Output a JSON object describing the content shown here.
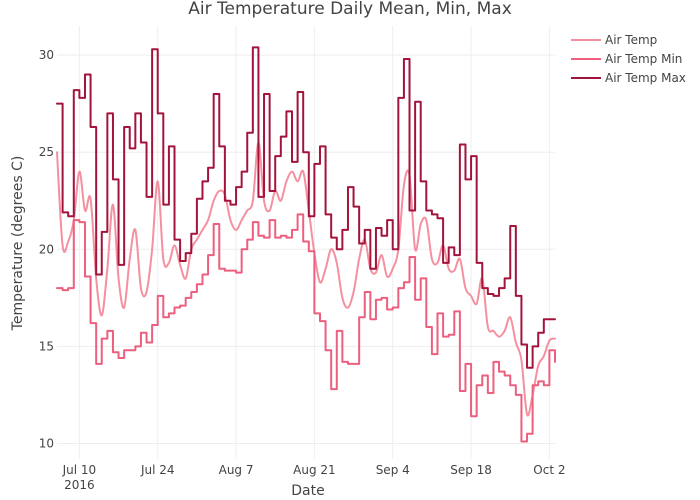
{
  "chart_data": {
    "type": "line",
    "title": "Air Temperature Daily Mean, Min, Max",
    "xlabel": "Date",
    "ylabel": "Temperature (degrees C)",
    "x_range": [
      "2016-07-06",
      "2016-10-03"
    ],
    "ylim": [
      9.2,
      31.5
    ],
    "x_ticks": [
      {
        "date": "2016-07-10",
        "label": "Jul 10",
        "sublabel": "2016"
      },
      {
        "date": "2016-07-24",
        "label": "Jul 24",
        "sublabel": ""
      },
      {
        "date": "2016-08-07",
        "label": "Aug 7",
        "sublabel": ""
      },
      {
        "date": "2016-08-21",
        "label": "Aug 21",
        "sublabel": ""
      },
      {
        "date": "2016-09-04",
        "label": "Sep 4",
        "sublabel": ""
      },
      {
        "date": "2016-09-18",
        "label": "Sep 18",
        "sublabel": ""
      },
      {
        "date": "2016-10-02",
        "label": "Oct 2",
        "sublabel": ""
      }
    ],
    "y_ticks": [
      10,
      15,
      20,
      25,
      30
    ],
    "grid": true,
    "legend_position": "top-right",
    "series": [
      {
        "name": "Air Temp",
        "color": "#f4909f",
        "shape": "smooth",
        "points": [
          [
            "2016-07-06",
            25.0
          ],
          [
            "2016-07-07",
            20.2
          ],
          [
            "2016-07-08",
            20.4
          ],
          [
            "2016-07-09",
            21.5
          ],
          [
            "2016-07-10",
            24.0
          ],
          [
            "2016-07-11",
            22.0
          ],
          [
            "2016-07-12",
            22.6
          ],
          [
            "2016-07-13",
            18.5
          ],
          [
            "2016-07-14",
            16.6
          ],
          [
            "2016-07-15",
            19.0
          ],
          [
            "2016-07-16",
            22.3
          ],
          [
            "2016-07-17",
            18.5
          ],
          [
            "2016-07-18",
            17.0
          ],
          [
            "2016-07-19",
            19.5
          ],
          [
            "2016-07-20",
            21.0
          ],
          [
            "2016-07-21",
            18.0
          ],
          [
            "2016-07-22",
            17.8
          ],
          [
            "2016-07-23",
            20.0
          ],
          [
            "2016-07-24",
            23.5
          ],
          [
            "2016-07-25",
            19.5
          ],
          [
            "2016-07-26",
            19.3
          ],
          [
            "2016-07-27",
            20.2
          ],
          [
            "2016-07-28",
            19.2
          ],
          [
            "2016-07-29",
            18.5
          ],
          [
            "2016-07-30",
            20.0
          ],
          [
            "2016-07-31",
            20.5
          ],
          [
            "2016-08-01",
            21.0
          ],
          [
            "2016-08-02",
            21.5
          ],
          [
            "2016-08-03",
            22.5
          ],
          [
            "2016-08-04",
            23.0
          ],
          [
            "2016-08-05",
            22.8
          ],
          [
            "2016-08-06",
            21.5
          ],
          [
            "2016-08-07",
            21.0
          ],
          [
            "2016-08-08",
            21.5
          ],
          [
            "2016-08-09",
            22.0
          ],
          [
            "2016-08-10",
            22.5
          ],
          [
            "2016-08-11",
            25.5
          ],
          [
            "2016-08-12",
            22.5
          ],
          [
            "2016-08-13",
            22.0
          ],
          [
            "2016-08-14",
            23.0
          ],
          [
            "2016-08-15",
            22.5
          ],
          [
            "2016-08-16",
            23.5
          ],
          [
            "2016-08-17",
            24.0
          ],
          [
            "2016-08-18",
            23.5
          ],
          [
            "2016-08-19",
            24.0
          ],
          [
            "2016-08-20",
            22.0
          ],
          [
            "2016-08-21",
            19.8
          ],
          [
            "2016-08-22",
            18.3
          ],
          [
            "2016-08-23",
            19.0
          ],
          [
            "2016-08-24",
            20.0
          ],
          [
            "2016-08-25",
            19.3
          ],
          [
            "2016-08-26",
            17.5
          ],
          [
            "2016-08-27",
            17.0
          ],
          [
            "2016-08-28",
            17.8
          ],
          [
            "2016-08-29",
            19.5
          ],
          [
            "2016-08-30",
            20.5
          ],
          [
            "2016-08-31",
            19.0
          ],
          [
            "2016-09-01",
            18.8
          ],
          [
            "2016-09-02",
            19.7
          ],
          [
            "2016-09-03",
            18.6
          ],
          [
            "2016-09-04",
            19.0
          ],
          [
            "2016-09-05",
            20.0
          ],
          [
            "2016-09-06",
            23.3
          ],
          [
            "2016-09-07",
            23.8
          ],
          [
            "2016-09-08",
            20.0
          ],
          [
            "2016-09-09",
            21.3
          ],
          [
            "2016-09-10",
            21.5
          ],
          [
            "2016-09-11",
            19.5
          ],
          [
            "2016-09-12",
            19.3
          ],
          [
            "2016-09-13",
            20.2
          ],
          [
            "2016-09-14",
            19.0
          ],
          [
            "2016-09-15",
            18.9
          ],
          [
            "2016-09-16",
            19.5
          ],
          [
            "2016-09-17",
            18.0
          ],
          [
            "2016-09-18",
            17.6
          ],
          [
            "2016-09-19",
            17.2
          ],
          [
            "2016-09-20",
            18.5
          ],
          [
            "2016-09-21",
            16.0
          ],
          [
            "2016-09-22",
            15.8
          ],
          [
            "2016-09-23",
            15.5
          ],
          [
            "2016-09-24",
            15.8
          ],
          [
            "2016-09-25",
            16.5
          ],
          [
            "2016-09-26",
            15.2
          ],
          [
            "2016-09-27",
            14.3
          ],
          [
            "2016-09-28",
            11.5
          ],
          [
            "2016-09-29",
            12.5
          ],
          [
            "2016-09-30",
            14.0
          ],
          [
            "2016-10-01",
            14.5
          ],
          [
            "2016-10-02",
            15.3
          ],
          [
            "2016-10-03",
            15.4
          ]
        ]
      },
      {
        "name": "Air Temp Min",
        "color": "#ec5f7e",
        "shape": "hv",
        "points": [
          [
            "2016-07-06",
            18.0
          ],
          [
            "2016-07-07",
            17.9
          ],
          [
            "2016-07-08",
            18.0
          ],
          [
            "2016-07-09",
            21.5
          ],
          [
            "2016-07-10",
            21.4
          ],
          [
            "2016-07-11",
            18.6
          ],
          [
            "2016-07-12",
            16.2
          ],
          [
            "2016-07-13",
            14.1
          ],
          [
            "2016-07-14",
            15.4
          ],
          [
            "2016-07-15",
            15.8
          ],
          [
            "2016-07-16",
            14.7
          ],
          [
            "2016-07-17",
            14.4
          ],
          [
            "2016-07-18",
            14.8
          ],
          [
            "2016-07-19",
            14.8
          ],
          [
            "2016-07-20",
            15.0
          ],
          [
            "2016-07-21",
            15.7
          ],
          [
            "2016-07-22",
            15.2
          ],
          [
            "2016-07-23",
            16.1
          ],
          [
            "2016-07-24",
            17.6
          ],
          [
            "2016-07-25",
            16.5
          ],
          [
            "2016-07-26",
            16.7
          ],
          [
            "2016-07-27",
            17.0
          ],
          [
            "2016-07-28",
            17.1
          ],
          [
            "2016-07-29",
            17.5
          ],
          [
            "2016-07-30",
            17.8
          ],
          [
            "2016-07-31",
            18.2
          ],
          [
            "2016-08-01",
            18.7
          ],
          [
            "2016-08-02",
            19.7
          ],
          [
            "2016-08-03",
            21.3
          ],
          [
            "2016-08-04",
            19.0
          ],
          [
            "2016-08-05",
            18.9
          ],
          [
            "2016-08-06",
            18.9
          ],
          [
            "2016-08-07",
            18.8
          ],
          [
            "2016-08-08",
            20.0
          ],
          [
            "2016-08-09",
            20.5
          ],
          [
            "2016-08-10",
            21.4
          ],
          [
            "2016-08-11",
            20.7
          ],
          [
            "2016-08-12",
            20.6
          ],
          [
            "2016-08-13",
            21.5
          ],
          [
            "2016-08-14",
            20.6
          ],
          [
            "2016-08-15",
            20.7
          ],
          [
            "2016-08-16",
            20.6
          ],
          [
            "2016-08-17",
            21.0
          ],
          [
            "2016-08-18",
            21.8
          ],
          [
            "2016-08-19",
            20.4
          ],
          [
            "2016-08-20",
            19.9
          ],
          [
            "2016-08-21",
            16.7
          ],
          [
            "2016-08-22",
            16.3
          ],
          [
            "2016-08-23",
            14.8
          ],
          [
            "2016-08-24",
            12.8
          ],
          [
            "2016-08-25",
            15.8
          ],
          [
            "2016-08-26",
            14.2
          ],
          [
            "2016-08-27",
            14.1
          ],
          [
            "2016-08-28",
            14.1
          ],
          [
            "2016-08-29",
            16.5
          ],
          [
            "2016-08-30",
            17.8
          ],
          [
            "2016-08-31",
            16.4
          ],
          [
            "2016-09-01",
            17.4
          ],
          [
            "2016-09-02",
            17.5
          ],
          [
            "2016-09-03",
            16.9
          ],
          [
            "2016-09-04",
            17.0
          ],
          [
            "2016-09-05",
            18.0
          ],
          [
            "2016-09-06",
            18.3
          ],
          [
            "2016-09-07",
            19.6
          ],
          [
            "2016-09-08",
            17.4
          ],
          [
            "2016-09-09",
            18.5
          ],
          [
            "2016-09-10",
            16.0
          ],
          [
            "2016-09-11",
            14.6
          ],
          [
            "2016-09-12",
            16.7
          ],
          [
            "2016-09-13",
            15.5
          ],
          [
            "2016-09-14",
            15.6
          ],
          [
            "2016-09-15",
            16.8
          ],
          [
            "2016-09-16",
            12.7
          ],
          [
            "2016-09-17",
            14.1
          ],
          [
            "2016-09-18",
            11.4
          ],
          [
            "2016-09-19",
            13.0
          ],
          [
            "2016-09-20",
            13.5
          ],
          [
            "2016-09-21",
            12.6
          ],
          [
            "2016-09-22",
            14.2
          ],
          [
            "2016-09-23",
            13.7
          ],
          [
            "2016-09-24",
            13.5
          ],
          [
            "2016-09-25",
            13.0
          ],
          [
            "2016-09-26",
            12.5
          ],
          [
            "2016-09-27",
            10.1
          ],
          [
            "2016-09-28",
            10.5
          ],
          [
            "2016-09-29",
            13.0
          ],
          [
            "2016-09-30",
            13.2
          ],
          [
            "2016-10-01",
            13.0
          ],
          [
            "2016-10-02",
            14.8
          ],
          [
            "2016-10-03",
            14.2
          ]
        ]
      },
      {
        "name": "Air Temp Max",
        "color": "#a3143c",
        "shape": "hv",
        "points": [
          [
            "2016-07-06",
            27.5
          ],
          [
            "2016-07-07",
            21.9
          ],
          [
            "2016-07-08",
            21.7
          ],
          [
            "2016-07-09",
            28.2
          ],
          [
            "2016-07-10",
            27.8
          ],
          [
            "2016-07-11",
            29.0
          ],
          [
            "2016-07-12",
            26.3
          ],
          [
            "2016-07-13",
            18.7
          ],
          [
            "2016-07-14",
            20.9
          ],
          [
            "2016-07-15",
            27.0
          ],
          [
            "2016-07-16",
            23.6
          ],
          [
            "2016-07-17",
            19.2
          ],
          [
            "2016-07-18",
            26.3
          ],
          [
            "2016-07-19",
            25.2
          ],
          [
            "2016-07-20",
            27.0
          ],
          [
            "2016-07-21",
            25.5
          ],
          [
            "2016-07-22",
            22.7
          ],
          [
            "2016-07-23",
            30.3
          ],
          [
            "2016-07-24",
            27.0
          ],
          [
            "2016-07-25",
            22.3
          ],
          [
            "2016-07-26",
            25.3
          ],
          [
            "2016-07-27",
            20.5
          ],
          [
            "2016-07-28",
            19.4
          ],
          [
            "2016-07-29",
            19.8
          ],
          [
            "2016-07-30",
            20.8
          ],
          [
            "2016-07-31",
            22.6
          ],
          [
            "2016-08-01",
            23.5
          ],
          [
            "2016-08-02",
            24.2
          ],
          [
            "2016-08-03",
            28.0
          ],
          [
            "2016-08-04",
            25.3
          ],
          [
            "2016-08-05",
            22.5
          ],
          [
            "2016-08-06",
            22.3
          ],
          [
            "2016-08-07",
            23.2
          ],
          [
            "2016-08-08",
            24.0
          ],
          [
            "2016-08-09",
            26.0
          ],
          [
            "2016-08-10",
            30.4
          ],
          [
            "2016-08-11",
            22.7
          ],
          [
            "2016-08-12",
            28.0
          ],
          [
            "2016-08-13",
            23.0
          ],
          [
            "2016-08-14",
            24.8
          ],
          [
            "2016-08-15",
            25.8
          ],
          [
            "2016-08-16",
            27.1
          ],
          [
            "2016-08-17",
            24.5
          ],
          [
            "2016-08-18",
            28.1
          ],
          [
            "2016-08-19",
            25.0
          ],
          [
            "2016-08-20",
            21.7
          ],
          [
            "2016-08-21",
            24.4
          ],
          [
            "2016-08-22",
            25.3
          ],
          [
            "2016-08-23",
            21.8
          ],
          [
            "2016-08-24",
            20.6
          ],
          [
            "2016-08-25",
            20.0
          ],
          [
            "2016-08-26",
            21.0
          ],
          [
            "2016-08-27",
            23.2
          ],
          [
            "2016-08-28",
            22.2
          ],
          [
            "2016-08-29",
            20.3
          ],
          [
            "2016-08-30",
            21.0
          ],
          [
            "2016-08-31",
            19.0
          ],
          [
            "2016-09-01",
            21.1
          ],
          [
            "2016-09-02",
            20.7
          ],
          [
            "2016-09-03",
            21.5
          ],
          [
            "2016-09-04",
            20.0
          ],
          [
            "2016-09-05",
            27.8
          ],
          [
            "2016-09-06",
            29.8
          ],
          [
            "2016-09-07",
            22.0
          ],
          [
            "2016-09-08",
            27.6
          ],
          [
            "2016-09-09",
            23.5
          ],
          [
            "2016-09-10",
            22.0
          ],
          [
            "2016-09-11",
            21.8
          ],
          [
            "2016-09-12",
            21.6
          ],
          [
            "2016-09-13",
            19.3
          ],
          [
            "2016-09-14",
            20.1
          ],
          [
            "2016-09-15",
            19.7
          ],
          [
            "2016-09-16",
            25.4
          ],
          [
            "2016-09-17",
            23.6
          ],
          [
            "2016-09-18",
            24.8
          ],
          [
            "2016-09-19",
            19.3
          ],
          [
            "2016-09-20",
            18.0
          ],
          [
            "2016-09-21",
            17.7
          ],
          [
            "2016-09-22",
            17.6
          ],
          [
            "2016-09-23",
            18.0
          ],
          [
            "2016-09-24",
            18.5
          ],
          [
            "2016-09-25",
            21.2
          ],
          [
            "2016-09-26",
            17.6
          ],
          [
            "2016-09-27",
            15.1
          ],
          [
            "2016-09-28",
            13.9
          ],
          [
            "2016-09-29",
            15.0
          ],
          [
            "2016-09-30",
            15.7
          ],
          [
            "2016-10-01",
            16.4
          ],
          [
            "2016-10-02",
            16.4
          ],
          [
            "2016-10-03",
            16.4
          ]
        ]
      }
    ]
  }
}
